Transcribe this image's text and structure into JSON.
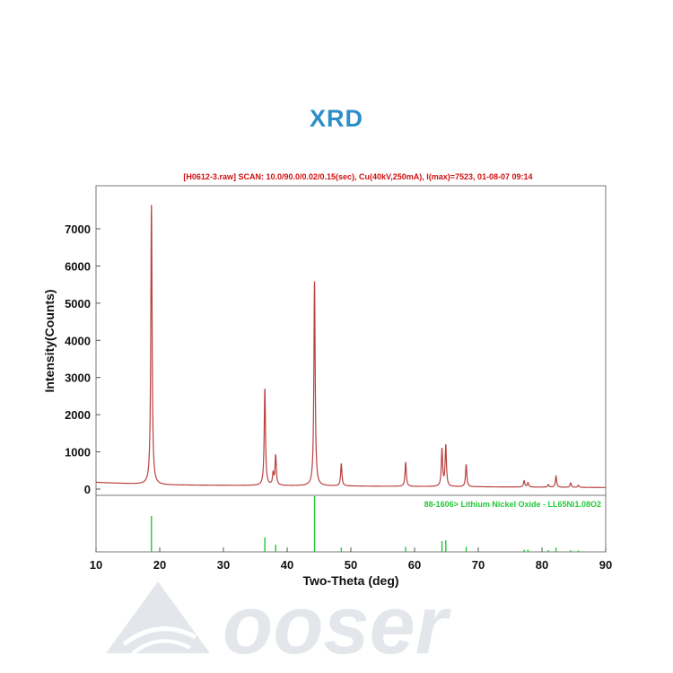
{
  "title": "XRD",
  "watermark": {
    "text": "ooser",
    "logo_icon": "triangle-wave-logo"
  },
  "colors": {
    "title": "#2c8fc9",
    "pattern_line": "#b84040",
    "reference_lines": "#22c838",
    "scan_header": "#d01010"
  },
  "chart_data": {
    "type": "line",
    "scan_header": "[H0612-3.raw] SCAN: 10.0/90.0/0.02/0.15(sec), Cu(40kV,250mA), I(max)=7523, 01-08-07 09:14",
    "xlabel": "Two-Theta (deg)",
    "ylabel": "Intensity(Counts)",
    "xlim": [
      10,
      90
    ],
    "ylim": [
      0,
      7800
    ],
    "x_ticks": [
      10,
      20,
      30,
      40,
      50,
      60,
      70,
      80,
      90
    ],
    "y_ticks": [
      0,
      1000,
      2000,
      3000,
      4000,
      5000,
      6000,
      7000
    ],
    "background": [
      [
        10,
        180
      ],
      [
        20,
        110
      ],
      [
        40,
        90
      ],
      [
        90,
        40
      ]
    ],
    "peaks": [
      {
        "x": 18.7,
        "y": 7523
      },
      {
        "x": 36.5,
        "y": 2600
      },
      {
        "x": 37.8,
        "y": 300
      },
      {
        "x": 38.2,
        "y": 800
      },
      {
        "x": 44.3,
        "y": 5500
      },
      {
        "x": 48.5,
        "y": 600
      },
      {
        "x": 58.6,
        "y": 650
      },
      {
        "x": 64.3,
        "y": 1000
      },
      {
        "x": 64.9,
        "y": 1100
      },
      {
        "x": 68.1,
        "y": 600
      },
      {
        "x": 77.2,
        "y": 170
      },
      {
        "x": 77.8,
        "y": 120
      },
      {
        "x": 81.0,
        "y": 70
      },
      {
        "x": 82.2,
        "y": 300
      },
      {
        "x": 84.5,
        "y": 120
      },
      {
        "x": 85.7,
        "y": 60
      }
    ],
    "reference": {
      "label": "88-1606> Lithium Nickel Oxide - LL65Ni1.08O2",
      "sticks": [
        {
          "x": 18.7,
          "h": 100
        },
        {
          "x": 36.5,
          "h": 40
        },
        {
          "x": 38.2,
          "h": 20
        },
        {
          "x": 44.3,
          "h": 160
        },
        {
          "x": 48.5,
          "h": 12
        },
        {
          "x": 58.6,
          "h": 14
        },
        {
          "x": 64.3,
          "h": 30
        },
        {
          "x": 64.9,
          "h": 32
        },
        {
          "x": 68.1,
          "h": 14
        },
        {
          "x": 77.2,
          "h": 6
        },
        {
          "x": 77.8,
          "h": 6
        },
        {
          "x": 81.0,
          "h": 5
        },
        {
          "x": 82.2,
          "h": 12
        },
        {
          "x": 84.5,
          "h": 5
        },
        {
          "x": 85.7,
          "h": 4
        }
      ]
    }
  }
}
